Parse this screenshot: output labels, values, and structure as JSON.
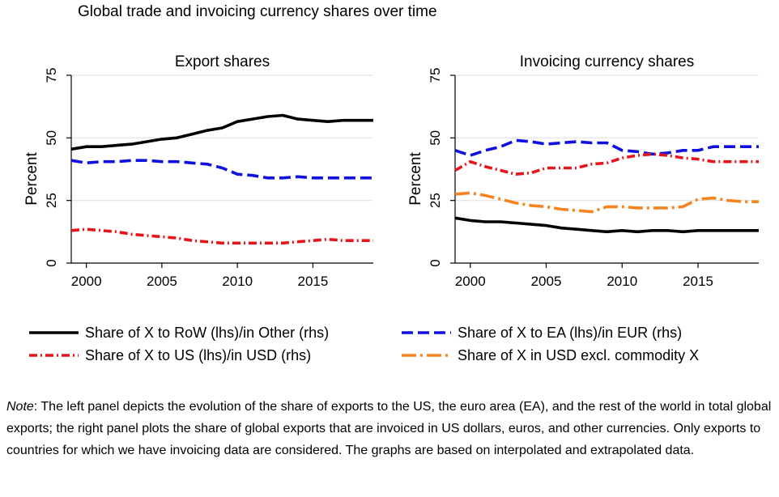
{
  "title": "Global trade and invoicing currency shares over time",
  "note": {
    "label": "Note",
    "text": ": The left panel depicts the evolution of the share of exports to the US, the euro area (EA), and the rest of the world in total global exports; the right panel plots the share of global exports that are invoiced in US dollars, euros, and other currencies.  Only exports to countries for which we have invoicing data are considered. The graphs are based on interpolated and extrapolated data."
  },
  "legend": [
    {
      "label": "Share of X to RoW (lhs)/in Other (rhs)",
      "color": "#000000",
      "style": "solid"
    },
    {
      "label": "Share of X to EA (lhs)/in EUR (rhs)",
      "color": "#1010e0",
      "style": "dash"
    },
    {
      "label": "Share of X to US (lhs)/in USD (rhs)",
      "color": "#e8141c",
      "style": "dashdot"
    },
    {
      "label": "Share of X in USD excl. commodity X",
      "color": "#f5841f",
      "style": "longdash"
    }
  ],
  "chart_data": [
    {
      "type": "line",
      "title": "Export shares",
      "ylabel": "Percent",
      "xlabel": "",
      "xlim": [
        1999,
        2019
      ],
      "ylim": [
        0,
        75
      ],
      "xticks": [
        2000,
        2005,
        2010,
        2015
      ],
      "yticks": [
        0,
        25,
        50,
        75
      ],
      "grid": "horizontal",
      "x": [
        1999,
        2000,
        2001,
        2002,
        2003,
        2004,
        2005,
        2006,
        2007,
        2008,
        2009,
        2010,
        2011,
        2012,
        2013,
        2014,
        2015,
        2016,
        2017,
        2018,
        2019
      ],
      "series": [
        {
          "name": "Share of X to RoW (lhs)/in Other (rhs)",
          "color": "#000000",
          "style": "solid",
          "values": [
            45.5,
            46.5,
            46.5,
            47,
            47.5,
            48.5,
            49.5,
            50,
            51.5,
            53,
            54,
            56.5,
            57.5,
            58.5,
            59,
            57.5,
            57,
            56.5,
            57,
            57,
            57
          ]
        },
        {
          "name": "Share of X to EA (lhs)/in EUR (rhs)",
          "color": "#1010e0",
          "style": "dash",
          "values": [
            41,
            40,
            40.5,
            40.5,
            41,
            41,
            40.5,
            40.5,
            40,
            39.5,
            38,
            35.5,
            35,
            34,
            34,
            34.5,
            34,
            34,
            34,
            34,
            34
          ]
        },
        {
          "name": "Share of X to US (lhs)/in USD (rhs)",
          "color": "#e8141c",
          "style": "dashdot",
          "values": [
            13,
            13.5,
            13,
            12.5,
            11.5,
            11,
            10.5,
            10,
            9,
            8.5,
            8,
            8,
            8,
            8,
            8,
            8.5,
            9,
            9.5,
            9,
            9,
            9
          ]
        }
      ]
    },
    {
      "type": "line",
      "title": "Invoicing currency shares",
      "ylabel": "Percent",
      "xlabel": "",
      "xlim": [
        1999,
        2019
      ],
      "ylim": [
        0,
        75
      ],
      "xticks": [
        2000,
        2005,
        2010,
        2015
      ],
      "yticks": [
        0,
        25,
        50,
        75
      ],
      "grid": "horizontal",
      "x": [
        1999,
        2000,
        2001,
        2002,
        2003,
        2004,
        2005,
        2006,
        2007,
        2008,
        2009,
        2010,
        2011,
        2012,
        2013,
        2014,
        2015,
        2016,
        2017,
        2018,
        2019
      ],
      "series": [
        {
          "name": "Share of X to RoW (lhs)/in Other (rhs)",
          "color": "#000000",
          "style": "solid",
          "values": [
            18,
            17,
            16.5,
            16.5,
            16,
            15.5,
            15,
            14,
            13.5,
            13,
            12.5,
            13,
            12.5,
            13,
            13,
            12.5,
            13,
            13,
            13,
            13,
            13
          ]
        },
        {
          "name": "Share of X to EA (lhs)/in EUR (rhs)",
          "color": "#1010e0",
          "style": "dash",
          "values": [
            45,
            43,
            45,
            46.5,
            49,
            48.5,
            47.5,
            48,
            48.5,
            48,
            48,
            45,
            44.5,
            43.5,
            44,
            45,
            45,
            46.5,
            46.5,
            46.5,
            46.5
          ]
        },
        {
          "name": "Share of X to US (lhs)/in USD (rhs)",
          "color": "#e8141c",
          "style": "dashdot",
          "values": [
            37,
            40.5,
            38.5,
            37,
            35.5,
            36,
            38,
            38,
            38,
            39.5,
            40,
            42,
            43,
            43.5,
            43,
            42,
            41.5,
            40.5,
            40.5,
            40.5,
            40.5
          ]
        },
        {
          "name": "Share of X in USD excl. commodity X",
          "color": "#f5841f",
          "style": "longdash",
          "values": [
            27.5,
            28,
            27,
            25.5,
            24,
            23,
            22.5,
            21.5,
            21,
            20.5,
            22.5,
            22.5,
            22,
            22,
            22,
            22.5,
            25.5,
            26,
            25,
            24.5,
            24.5
          ]
        }
      ]
    }
  ]
}
